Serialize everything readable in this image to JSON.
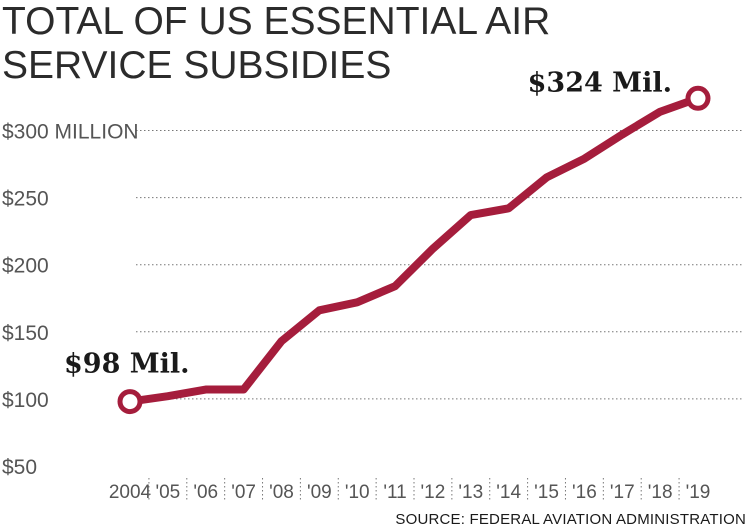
{
  "chart_data": {
    "type": "line",
    "title_lines": [
      "TOTAL OF US ESSENTIAL AIR",
      "SERVICE SUBSIDIES"
    ],
    "x": [
      "2004",
      "'05",
      "'06",
      "'07",
      "'08",
      "'09",
      "'10",
      "'11",
      "'12",
      "'13",
      "'14",
      "'15",
      "'16",
      "'17",
      "'18",
      "'19"
    ],
    "series": [
      {
        "values": [
          98,
          102,
          107,
          107,
          143,
          166,
          172,
          184,
          212,
          237,
          242,
          265,
          279,
          297,
          314,
          324
        ]
      }
    ],
    "yticks": [
      {
        "value": 50,
        "label": "$50"
      },
      {
        "value": 100,
        "label": "$100"
      },
      {
        "value": 150,
        "label": "$150"
      },
      {
        "value": 200,
        "label": "$200"
      },
      {
        "value": 250,
        "label": "$250"
      },
      {
        "value": 300,
        "label": "$300 MILLION"
      }
    ],
    "ylim": [
      50,
      324
    ],
    "grid": "horizontal dotted",
    "annotations": [
      {
        "text": "$98 Mil.",
        "point_index": 0
      },
      {
        "text": "$324 Mil.",
        "point_index": 15
      }
    ],
    "line_color": "#a51d3c",
    "source": "SOURCE: FEDERAL AVIATION ADMINISTRATION"
  }
}
